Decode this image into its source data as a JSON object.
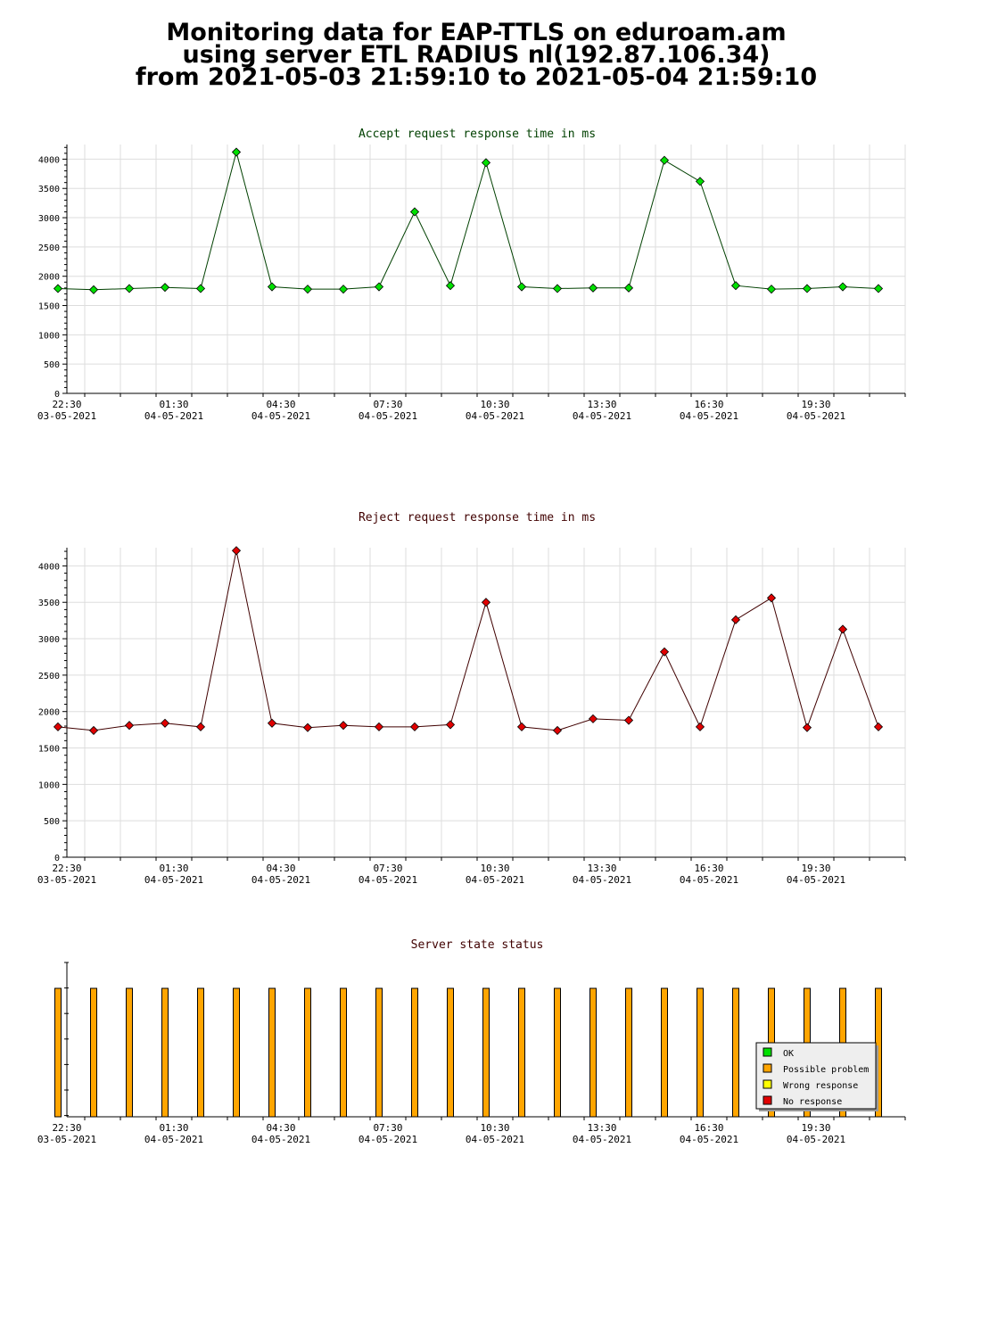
{
  "page": {
    "title_lines": [
      "Monitoring data for EAP-TTLS on eduroam.am",
      "using server ETL RADIUS nl(192.87.106.34)",
      "from 2021-05-03 21:59:10 to 2021-05-04 21:59:10"
    ]
  },
  "colors": {
    "accept_marker": "#00e000",
    "accept_line": "#004000",
    "reject_marker": "#e00000",
    "reject_line": "#400000",
    "bar_fill": "#ffa500",
    "grid": "#dddddd",
    "legend_bg": "#eeeeee"
  },
  "chart_data": [
    {
      "type": "line",
      "title": "Accept request response time in ms",
      "title_color": "#004000",
      "x": [
        "22:15",
        "23:15",
        "00:15",
        "01:15",
        "02:15",
        "03:15",
        "04:15",
        "05:15",
        "06:15",
        "07:15",
        "08:15",
        "09:15",
        "10:15",
        "11:15",
        "12:15",
        "13:15",
        "14:15",
        "15:15",
        "16:15",
        "17:15",
        "18:15",
        "19:15",
        "20:15",
        "21:15"
      ],
      "values": [
        1790,
        1770,
        1790,
        1810,
        1790,
        4120,
        1820,
        1780,
        1780,
        1820,
        3100,
        1840,
        3940,
        1820,
        1790,
        1800,
        1800,
        3980,
        3620,
        1840,
        1780,
        1790,
        1820,
        1790
      ],
      "ylim": [
        0,
        4250
      ],
      "yticks": [
        0,
        500,
        1000,
        1500,
        2000,
        2500,
        3000,
        3500,
        4000
      ],
      "xticks": [
        {
          "time": "22:30",
          "date": "03-05-2021"
        },
        {
          "time": "01:30",
          "date": "04-05-2021"
        },
        {
          "time": "04:30",
          "date": "04-05-2021"
        },
        {
          "time": "07:30",
          "date": "04-05-2021"
        },
        {
          "time": "10:30",
          "date": "04-05-2021"
        },
        {
          "time": "13:30",
          "date": "04-05-2021"
        },
        {
          "time": "16:30",
          "date": "04-05-2021"
        },
        {
          "time": "19:30",
          "date": "04-05-2021"
        }
      ],
      "grid": true
    },
    {
      "type": "line",
      "title": "Reject request response time in ms",
      "title_color": "#400000",
      "x": [
        "22:15",
        "23:15",
        "00:15",
        "01:15",
        "02:15",
        "03:15",
        "04:15",
        "05:15",
        "06:15",
        "07:15",
        "08:15",
        "09:15",
        "10:15",
        "11:15",
        "12:15",
        "13:15",
        "14:15",
        "15:15",
        "16:15",
        "17:15",
        "18:15",
        "19:15",
        "20:15",
        "21:15"
      ],
      "values": [
        1790,
        1740,
        1810,
        1840,
        1790,
        4210,
        1840,
        1780,
        1810,
        1790,
        1790,
        1820,
        3500,
        1790,
        1740,
        1900,
        1880,
        2820,
        1790,
        3260,
        3560,
        1780,
        3130,
        1790
      ],
      "ylim": [
        0,
        4250
      ],
      "yticks": [
        0,
        500,
        1000,
        1500,
        2000,
        2500,
        3000,
        3500,
        4000
      ],
      "xticks": [
        {
          "time": "22:30",
          "date": "03-05-2021"
        },
        {
          "time": "01:30",
          "date": "04-05-2021"
        },
        {
          "time": "04:30",
          "date": "04-05-2021"
        },
        {
          "time": "07:30",
          "date": "04-05-2021"
        },
        {
          "time": "10:30",
          "date": "04-05-2021"
        },
        {
          "time": "13:30",
          "date": "04-05-2021"
        },
        {
          "time": "16:30",
          "date": "04-05-2021"
        },
        {
          "time": "19:30",
          "date": "04-05-2021"
        }
      ],
      "grid": true
    },
    {
      "type": "bar",
      "title": "Server state status",
      "title_color": "#400000",
      "x": [
        "22:15",
        "23:15",
        "00:15",
        "01:15",
        "02:15",
        "03:15",
        "04:15",
        "05:15",
        "06:15",
        "07:15",
        "08:15",
        "09:15",
        "10:15",
        "11:15",
        "12:15",
        "13:15",
        "14:15",
        "15:15",
        "16:15",
        "17:15",
        "18:15",
        "19:15",
        "20:15",
        "21:15"
      ],
      "states": [
        "Possible problem",
        "Possible problem",
        "Possible problem",
        "Possible problem",
        "Possible problem",
        "Possible problem",
        "Possible problem",
        "Possible problem",
        "Possible problem",
        "Possible problem",
        "Possible problem",
        "Possible problem",
        "Possible problem",
        "Possible problem",
        "Possible problem",
        "Possible problem",
        "Possible problem",
        "Possible problem",
        "Possible problem",
        "Possible problem",
        "Possible problem",
        "Possible problem",
        "Possible problem",
        "Possible problem"
      ],
      "xticks": [
        {
          "time": "22:30",
          "date": "03-05-2021"
        },
        {
          "time": "01:30",
          "date": "04-05-2021"
        },
        {
          "time": "04:30",
          "date": "04-05-2021"
        },
        {
          "time": "07:30",
          "date": "04-05-2021"
        },
        {
          "time": "10:30",
          "date": "04-05-2021"
        },
        {
          "time": "13:30",
          "date": "04-05-2021"
        },
        {
          "time": "16:30",
          "date": "04-05-2021"
        },
        {
          "time": "19:30",
          "date": "04-05-2021"
        }
      ],
      "legend": [
        {
          "label": "OK",
          "color": "#00e000"
        },
        {
          "label": "Possible problem",
          "color": "#ffa500"
        },
        {
          "label": "Wrong response",
          "color": "#ffff00"
        },
        {
          "label": "No response",
          "color": "#e00000"
        }
      ],
      "legend_position": "bottom-right"
    }
  ]
}
